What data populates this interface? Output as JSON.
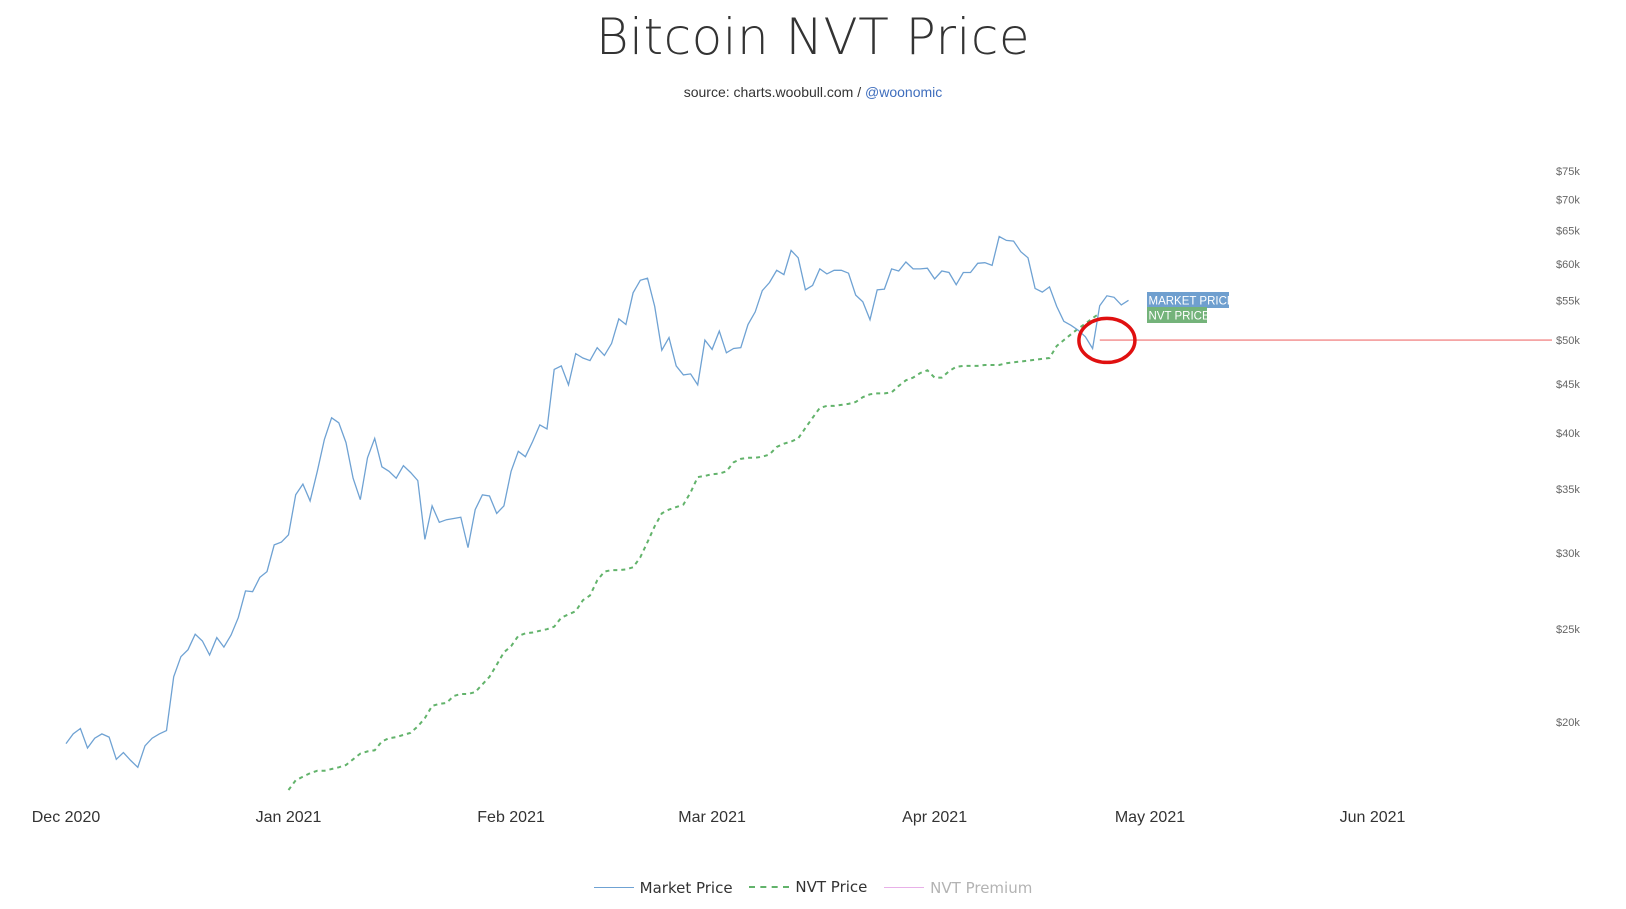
{
  "title": "Bitcoin NVT Price",
  "subtitle": {
    "source": "source: charts.woobull.com / ",
    "handle": "@woonomic"
  },
  "colors": {
    "market": "#6fa2d3",
    "nvt": "#62b36b",
    "premium": "#e8b0e8",
    "hline": "#ef6f6f",
    "circle": "#e01010",
    "market_label_bg": "#6f9fcf",
    "nvt_label_bg": "#74b37a"
  },
  "legend": [
    {
      "label": "Market Price",
      "style": "solid",
      "color": "#6fa2d3",
      "active": true
    },
    {
      "label": "NVT Price",
      "style": "dashed",
      "color": "#62b36b",
      "active": true
    },
    {
      "label": "NVT Premium",
      "style": "solid",
      "color": "#e8b0e8",
      "active": false
    }
  ],
  "end_labels": {
    "market": "MARKET PRICE",
    "nvt": "NVT PRICE"
  },
  "chart_data": {
    "type": "line",
    "title": "Bitcoin NVT Price",
    "y_scale": "log",
    "ylim": [
      17000,
      77000
    ],
    "y_ticks": [
      {
        "value": 20000,
        "label": "$20k"
      },
      {
        "value": 25000,
        "label": "$25k"
      },
      {
        "value": 30000,
        "label": "$30k"
      },
      {
        "value": 35000,
        "label": "$35k"
      },
      {
        "value": 40000,
        "label": "$40k"
      },
      {
        "value": 45000,
        "label": "$45k"
      },
      {
        "value": 50000,
        "label": "$50k"
      },
      {
        "value": 55000,
        "label": "$55k"
      },
      {
        "value": 60000,
        "label": "$60k"
      },
      {
        "value": 65000,
        "label": "$65k"
      },
      {
        "value": 70000,
        "label": "$70k"
      },
      {
        "value": 75000,
        "label": "$75k"
      }
    ],
    "xlim": [
      "2020-12-01",
      "2021-06-26"
    ],
    "x_ticks": [
      {
        "date": "2020-12-01",
        "label": "Dec 2020"
      },
      {
        "date": "2021-01-01",
        "label": "Jan 2021"
      },
      {
        "date": "2021-02-01",
        "label": "Feb 2021"
      },
      {
        "date": "2021-03-01",
        "label": "Mar 2021"
      },
      {
        "date": "2021-04-01",
        "label": "Apr 2021"
      },
      {
        "date": "2021-05-01",
        "label": "May 2021"
      },
      {
        "date": "2021-06-01",
        "label": "Jun 2021"
      }
    ],
    "horizontal_line": {
      "value": 50000,
      "from_date": "2021-04-24"
    },
    "annotation": {
      "type": "circle",
      "date": "2021-04-25",
      "value": 50200
    },
    "series": [
      {
        "name": "Market Price",
        "start_date": "2020-12-01",
        "values": [
          19000,
          19450,
          19700,
          18800,
          19250,
          19450,
          19300,
          18300,
          18600,
          18250,
          17950,
          18900,
          19250,
          19450,
          19600,
          22300,
          23400,
          23800,
          24700,
          24300,
          23500,
          24500,
          23950,
          24650,
          25700,
          27400,
          27350,
          28300,
          28700,
          30600,
          30800,
          31350,
          34500,
          35400,
          34000,
          36500,
          39400,
          41500,
          41000,
          39100,
          35900,
          34100,
          37700,
          39500,
          36900,
          36500,
          35900,
          37000,
          36400,
          35700,
          31000,
          33600,
          32300,
          32500,
          32600,
          32700,
          30400,
          33300,
          34500,
          34400,
          33000,
          33600,
          36500,
          38300,
          37800,
          39200,
          40800,
          40400,
          46600,
          47000,
          44900,
          48400,
          47900,
          47600,
          49100,
          48200,
          49600,
          52600,
          51900,
          56000,
          57700,
          58000,
          54200,
          48800,
          50300,
          47000,
          46000,
          46100,
          44900,
          50000,
          48900,
          51100,
          48500,
          49000,
          49100,
          51900,
          53500,
          56300,
          57400,
          59100,
          58500,
          62000,
          60900,
          56400,
          57000,
          59300,
          58600,
          59100,
          59100,
          58700,
          55700,
          54800,
          52500,
          56400,
          56500,
          59300,
          59000,
          60300,
          59300,
          59300,
          59400,
          57900,
          59000,
          58800,
          57100,
          58800,
          58800,
          60100,
          60200,
          59800,
          64100,
          63500,
          63400,
          61800,
          60900,
          56600,
          56100,
          56800,
          54200,
          52300,
          51800,
          51200,
          50400,
          49000,
          54300,
          55600,
          55400,
          54400,
          55000
        ]
      },
      {
        "name": "NVT Price",
        "start_date": "2021-01-01",
        "values": [
          17000,
          17400,
          17550,
          17700,
          17800,
          17800,
          17880,
          17950,
          18050,
          18300,
          18550,
          18650,
          18700,
          19100,
          19250,
          19300,
          19400,
          19500,
          19800,
          20200,
          20800,
          20900,
          20950,
          21300,
          21400,
          21400,
          21500,
          21900,
          22300,
          22950,
          23650,
          24000,
          24600,
          24750,
          24800,
          24900,
          25000,
          25150,
          25700,
          25900,
          26100,
          26800,
          27100,
          28100,
          28700,
          28800,
          28800,
          28850,
          29000,
          29700,
          30800,
          32000,
          33000,
          33300,
          33500,
          33700,
          34700,
          36000,
          36100,
          36250,
          36300,
          36500,
          37300,
          37600,
          37700,
          37700,
          37800,
          38000,
          38700,
          39000,
          39200,
          39500,
          40500,
          41500,
          42500,
          42700,
          42700,
          42800,
          42900,
          43100,
          43600,
          43900,
          44000,
          44000,
          44100,
          44800,
          45400,
          45700,
          46200,
          46500,
          45700,
          45700,
          46400,
          46900,
          47000,
          47000,
          47000,
          47100,
          47100,
          47100,
          47300,
          47400,
          47500,
          47600,
          47700,
          47800,
          47900,
          49300,
          50000,
          50700,
          51400,
          52000,
          52700,
          53300
        ]
      }
    ]
  }
}
